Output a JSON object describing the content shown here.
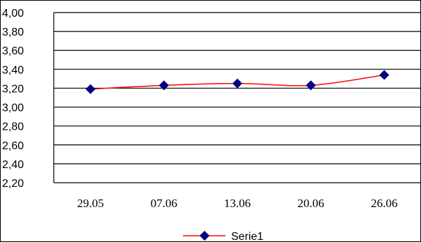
{
  "chart_data": {
    "type": "line",
    "categories": [
      "29.05",
      "07.06",
      "13.06",
      "20.06",
      "26.06"
    ],
    "series": [
      {
        "name": "Serie1",
        "values": [
          3.19,
          3.23,
          3.25,
          3.23,
          3.34
        ]
      }
    ],
    "y_ticks": [
      "4,00",
      "3,80",
      "3,60",
      "3,40",
      "3,20",
      "3,00",
      "2,80",
      "2,60",
      "2,40",
      "2,20"
    ],
    "ylim": [
      2.2,
      4.0
    ],
    "grid": true,
    "legend_position": "bottom",
    "colors": {
      "line": "#ff0000",
      "marker": "#000080",
      "grid": "#000000"
    }
  }
}
